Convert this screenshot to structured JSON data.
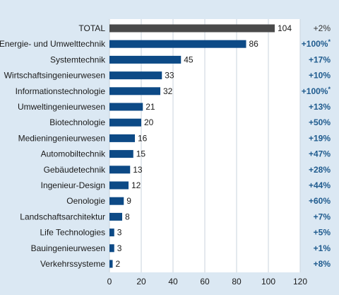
{
  "chart_data": {
    "type": "bar",
    "orientation": "horizontal",
    "categories": [
      "TOTAL",
      "Energie- und Umwelttechnik",
      "Systemtechnik",
      "Wirtschaftsingenieurwesen",
      "Informationstechnologie",
      "Umweltingenieurwesen",
      "Biotechnologie",
      "Medieningenieurwesen",
      "Automobiltechnik",
      "Gebäudetechnik",
      "Ingenieur-Design",
      "Oenologie",
      "Landschaftsarchitektur",
      "Life Technologies",
      "Bauingenieurwesen",
      "Verkehrssysteme"
    ],
    "values": [
      104,
      86,
      45,
      33,
      32,
      21,
      20,
      16,
      15,
      13,
      12,
      9,
      8,
      3,
      3,
      2
    ],
    "value_labels": [
      "104",
      "86",
      "45",
      "33",
      "32",
      "21",
      "20",
      "16",
      "15",
      "13",
      "12",
      "9",
      "8",
      "3",
      "3",
      "2"
    ],
    "changes": [
      "+2%",
      "+100%*",
      "+17%",
      "+10%",
      "+100%*",
      "+13%",
      "+50%",
      "+19%",
      "+47%",
      "+28%",
      "+44%",
      "+60%",
      "+7%",
      "+5%",
      "+1%",
      "+8%"
    ],
    "xlim": [
      0,
      120
    ],
    "xticks": [
      0,
      20,
      40,
      60,
      80,
      100,
      120
    ],
    "xtick_labels": [
      "0",
      "20",
      "40",
      "60",
      "80",
      "100",
      "120"
    ],
    "grid": true,
    "colors": {
      "background": "#dbe8f3",
      "plot_background": "#ffffff",
      "grid": "#c9d3dc",
      "total_bar": "#4a4a4a",
      "bar": "#0d4a86",
      "change_text": "#1f5b8e",
      "total_change_text": "#333333"
    }
  }
}
